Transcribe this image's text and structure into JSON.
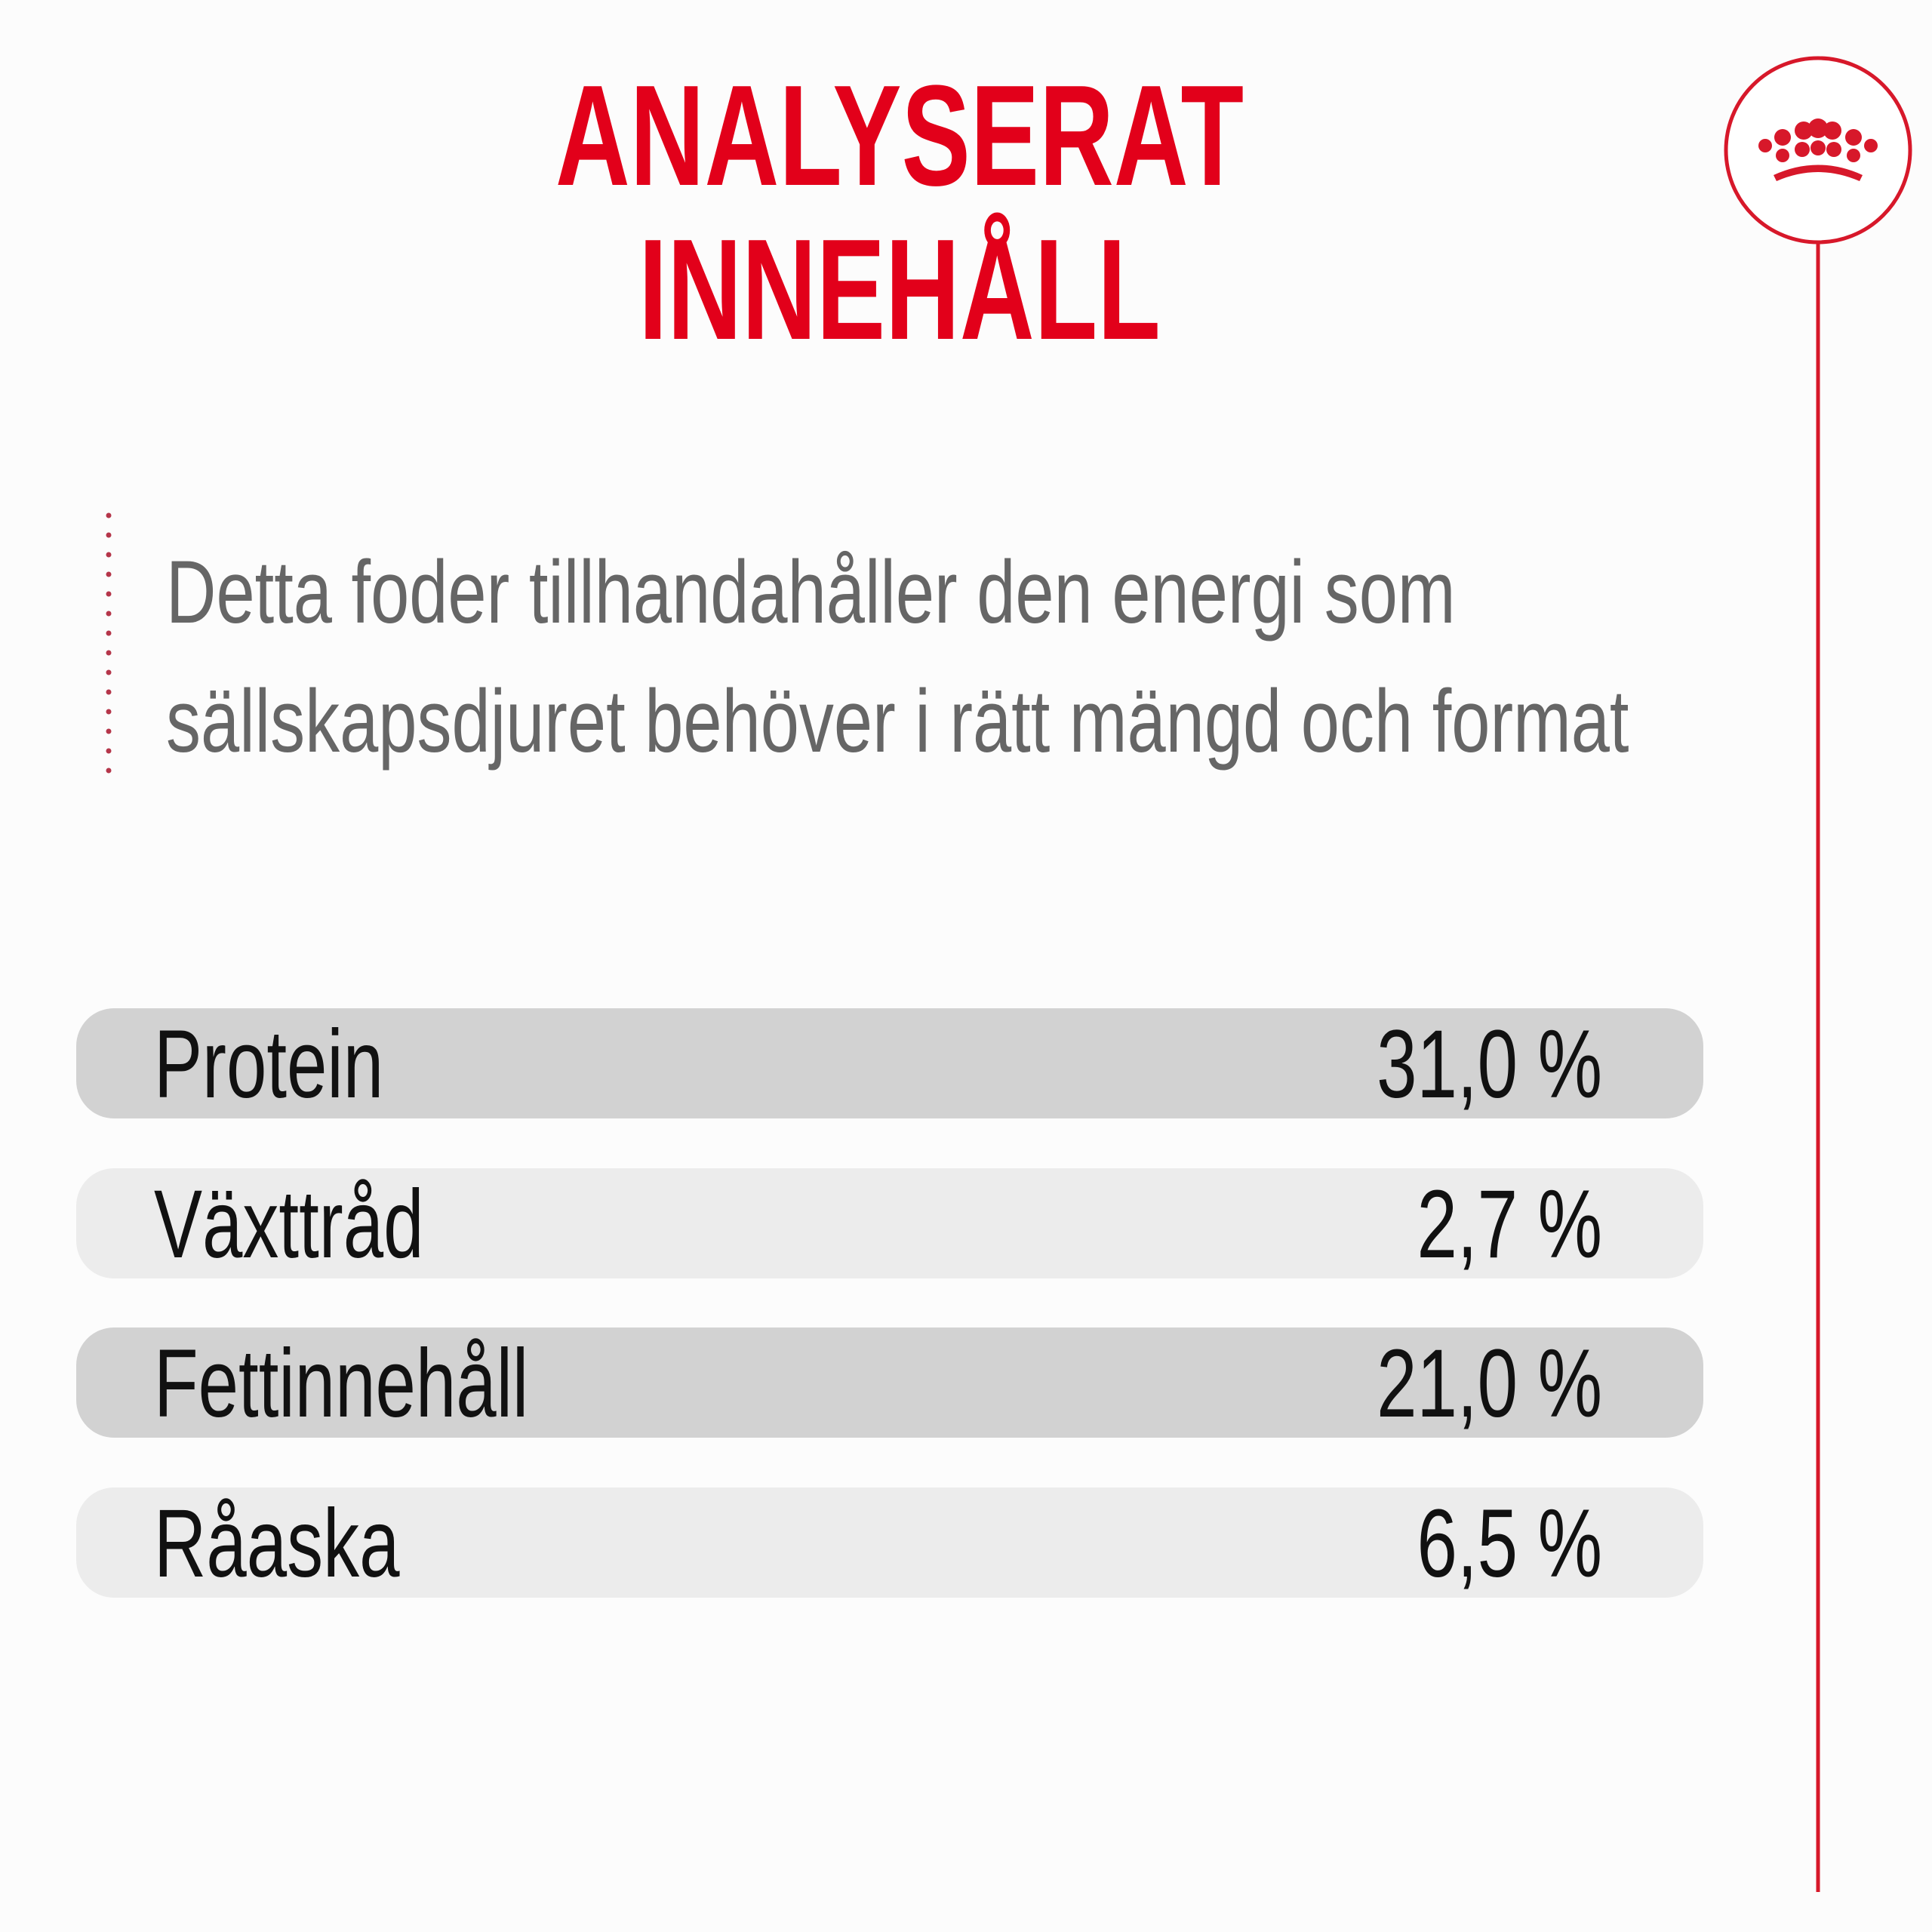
{
  "header": {
    "title": [
      "ANALYSERAT",
      "INNEHÅLL"
    ]
  },
  "description": [
    "Detta foder tillhandahåller den energi som",
    "sällskapsdjuret behöver i rätt mängd och format"
  ],
  "table": {
    "rows": [
      [
        "Protein",
        "31,0 %"
      ],
      [
        "Växttråd",
        "2,7 %"
      ],
      [
        "Fettinnehåll",
        "21,0 %"
      ],
      [
        "Råaska",
        "6,5 %"
      ]
    ]
  }
}
